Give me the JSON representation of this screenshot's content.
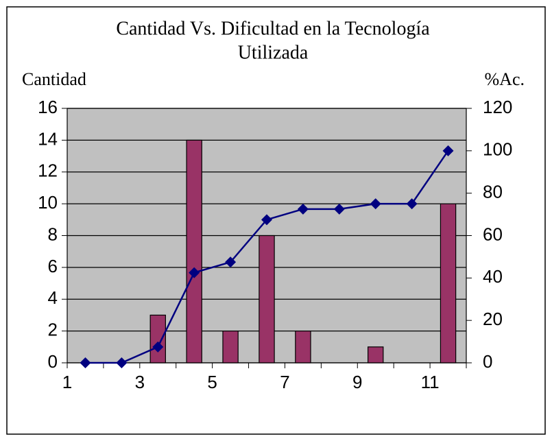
{
  "chart_data": {
    "type": "bar_line",
    "title": [
      "Cantidad Vs. Dificultad en la Tecnología",
      "Utilizada"
    ],
    "y_label": "Cantidad",
    "y2_label": "%Ac.",
    "categories": [
      "1",
      null,
      "3",
      null,
      "5",
      null,
      "7",
      null,
      "9",
      null,
      "11"
    ],
    "series": [
      {
        "name": "Cantidad",
        "type": "bar",
        "color": "#993366",
        "values": [
          0,
          0,
          3,
          14,
          2,
          8,
          2,
          0,
          1,
          0,
          10
        ]
      },
      {
        "name": "%Ac.",
        "type": "line",
        "axis": "y2",
        "color": "#000080",
        "values": [
          0,
          0,
          7.5,
          42.5,
          47.5,
          67.5,
          72.5,
          72.5,
          75,
          75,
          100
        ]
      }
    ],
    "ylim": [
      0,
      16
    ],
    "yticks": [
      0,
      2,
      4,
      6,
      8,
      10,
      12,
      14,
      16
    ],
    "y2lim": [
      0,
      120
    ],
    "y2ticks": [
      0,
      20,
      40,
      60,
      80,
      100,
      120
    ],
    "grid": true,
    "plot_background": "#c0c0c0"
  }
}
